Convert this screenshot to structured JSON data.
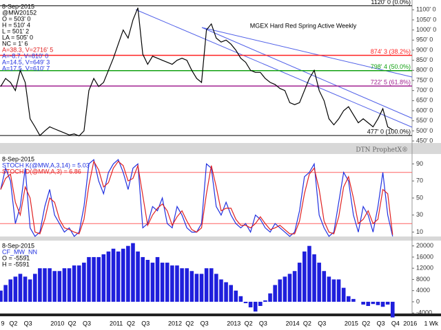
{
  "chart_data": [
    {
      "type": "line",
      "title": "MGEX Hard Red Spring Active Weekly",
      "watermark": "DTN ProphetX®",
      "info_lines": [
        {
          "text": "8-Sep-2015",
          "color": "#000"
        },
        {
          "text": "@MW20152",
          "color": "#000"
        },
        {
          "text": "O = 503' 0",
          "color": "#000"
        },
        {
          "text": "H = 510' 4",
          "color": "#000"
        },
        {
          "text": "L = 501' 2",
          "color": "#000"
        },
        {
          "text": "LA = 505' 0",
          "color": "#000"
        },
        {
          "text": "NC = 1' 6",
          "color": "#000"
        },
        {
          "text": "A=38.3, V=2716' 5",
          "color": "#e02020"
        },
        {
          "text": "A=-8.7, V=810' 0",
          "color": "#2030e0"
        },
        {
          "text": "A=14.5, V=649' 3",
          "color": "#2030e0"
        },
        {
          "text": "A=17.5, V=610' 7",
          "color": "#2030e0"
        }
      ],
      "ylim": [
        440,
        1135
      ],
      "yticks": [
        {
          "value": 1100,
          "label": "1100' 0"
        },
        {
          "value": 1050,
          "label": "1050' 0"
        },
        {
          "value": 1000,
          "label": "1000' 0"
        },
        {
          "value": 950,
          "label": "950' 0"
        },
        {
          "value": 900,
          "label": "900' 0"
        },
        {
          "value": 850,
          "label": "850' 0"
        },
        {
          "value": 800,
          "label": "800' 0"
        },
        {
          "value": 750,
          "label": "750' 0"
        },
        {
          "value": 700,
          "label": "700' 0"
        },
        {
          "value": 650,
          "label": "650' 0"
        },
        {
          "value": 600,
          "label": "600' 0"
        },
        {
          "value": 550,
          "label": "550' 0"
        },
        {
          "value": 500,
          "label": "500' 0"
        },
        {
          "value": 450,
          "label": "450' 0"
        }
      ],
      "fib_levels": [
        {
          "value": 1120,
          "label": "1120' 0 (0.0%)",
          "color": "#000000"
        },
        {
          "value": 874.3,
          "label": "874' 3 (38.2%)",
          "color": "#ff2020"
        },
        {
          "value": 798.4,
          "label": "798' 4 (50.0%)",
          "color": "#10a010"
        },
        {
          "value": 722.5,
          "label": "722' 5 (61.8%)",
          "color": "#a02090"
        },
        {
          "value": 477,
          "label": "477' 0 (100.0%)",
          "color": "#000000"
        }
      ],
      "series": [
        {
          "color": "#000000",
          "values": [
            720,
            760,
            740,
            700,
            800,
            740,
            560,
            520,
            477,
            500,
            520,
            510,
            500,
            490,
            480,
            485,
            475,
            500,
            700,
            760,
            720,
            740,
            800,
            860,
            930,
            1000,
            960,
            1050,
            1110,
            880,
            830,
            870,
            860,
            850,
            840,
            830,
            850,
            860,
            850,
            800,
            760,
            740,
            1000,
            1030,
            960,
            940,
            950,
            930,
            900,
            860,
            840,
            800,
            790,
            790,
            760,
            740,
            730,
            710,
            700,
            640,
            630,
            640,
            700,
            760,
            800,
            700,
            650,
            560,
            530,
            560,
            600,
            620,
            580,
            540,
            560,
            540,
            520,
            560,
            610,
            520,
            505
          ]
        }
      ]
    },
    {
      "type": "line",
      "ylim": [
        0,
        100
      ],
      "yticks": [
        90,
        70,
        50,
        30,
        10
      ],
      "ref_lines": [
        80,
        20
      ],
      "ref_color": "#ff6060",
      "date": "8-Sep-2015",
      "series": [
        {
          "name": "STOCH K(@MW,A,3,14) = 5.03",
          "color": "#2030e0",
          "values": [
            60,
            85,
            70,
            20,
            40,
            85,
            15,
            5,
            10,
            40,
            60,
            30,
            20,
            10,
            15,
            5,
            10,
            40,
            90,
            95,
            70,
            55,
            80,
            90,
            95,
            80,
            60,
            85,
            90,
            15,
            20,
            40,
            35,
            50,
            20,
            15,
            40,
            30,
            15,
            10,
            10,
            20,
            90,
            85,
            40,
            30,
            45,
            30,
            20,
            15,
            20,
            10,
            30,
            25,
            15,
            10,
            20,
            15,
            10,
            5,
            10,
            35,
            75,
            80,
            90,
            30,
            15,
            5,
            10,
            45,
            80,
            70,
            30,
            10,
            40,
            30,
            10,
            40,
            80,
            30,
            5.03
          ]
        },
        {
          "name": "STOCH D(@MW,A,3) = 6.86",
          "color": "#e02020",
          "values": [
            60,
            73,
            78,
            45,
            30,
            63,
            50,
            10,
            8,
            25,
            50,
            45,
            25,
            15,
            13,
            10,
            8,
            25,
            65,
            93,
            83,
            63,
            68,
            85,
            93,
            88,
            70,
            73,
            88,
            53,
            18,
            30,
            38,
            43,
            35,
            18,
            28,
            35,
            23,
            13,
            10,
            15,
            55,
            88,
            63,
            35,
            38,
            38,
            25,
            18,
            18,
            15,
            20,
            28,
            20,
            13,
            15,
            18,
            13,
            8,
            8,
            23,
            55,
            78,
            85,
            60,
            23,
            10,
            8,
            28,
            63,
            75,
            50,
            20,
            25,
            35,
            20,
            25,
            60,
            55,
            6.86
          ]
        }
      ]
    },
    {
      "type": "bar",
      "ylim": [
        -4200,
        21400
      ],
      "yticks": [
        20000,
        16000,
        12000,
        8000,
        4000,
        0,
        -4000
      ],
      "date": "8-Sep-2015",
      "info_lines": [
        {
          "text": "CF_MW_NN",
          "color": "#2030e0"
        },
        {
          "text": "O = -5591",
          "color": "#000"
        },
        {
          "text": "H = -5591",
          "color": "#000"
        }
      ],
      "series": [
        {
          "color": "#1f1fdc",
          "values": [
            4000,
            6000,
            8000,
            9000,
            10000,
            9000,
            8000,
            10000,
            12000,
            12000,
            12000,
            11000,
            11000,
            12000,
            12000,
            13000,
            13000,
            14000,
            16000,
            16000,
            16000,
            17000,
            18000,
            19000,
            18000,
            19000,
            20000,
            21000,
            18000,
            16000,
            15000,
            14000,
            16000,
            14000,
            14000,
            13000,
            13000,
            12000,
            12000,
            11000,
            10000,
            10000,
            12000,
            12000,
            10000,
            8000,
            7000,
            6000,
            4000,
            2000,
            -500,
            -2000,
            -3500,
            -1500,
            500,
            3000,
            6000,
            8000,
            9000,
            10000,
            11000,
            14000,
            18000,
            20000,
            17000,
            14000,
            11000,
            9000,
            8000,
            8000,
            5000,
            2000,
            1000,
            0,
            -1000,
            -1500,
            -800,
            -1200,
            -1800,
            -1000,
            -5591
          ]
        }
      ]
    }
  ],
  "time_axis": {
    "categories": [
      "9",
      "Q2",
      "Q3",
      null,
      "2010",
      "Q2",
      "Q3",
      null,
      "2011",
      "Q2",
      "Q3",
      null,
      "2012",
      "Q2",
      "Q3",
      null,
      "2013",
      "Q2",
      "Q3",
      null,
      "2014",
      "Q2",
      "Q3",
      null,
      "2015",
      "Q2",
      "Q3",
      "Q4",
      "2016"
    ],
    "interval": "1 Wk"
  }
}
